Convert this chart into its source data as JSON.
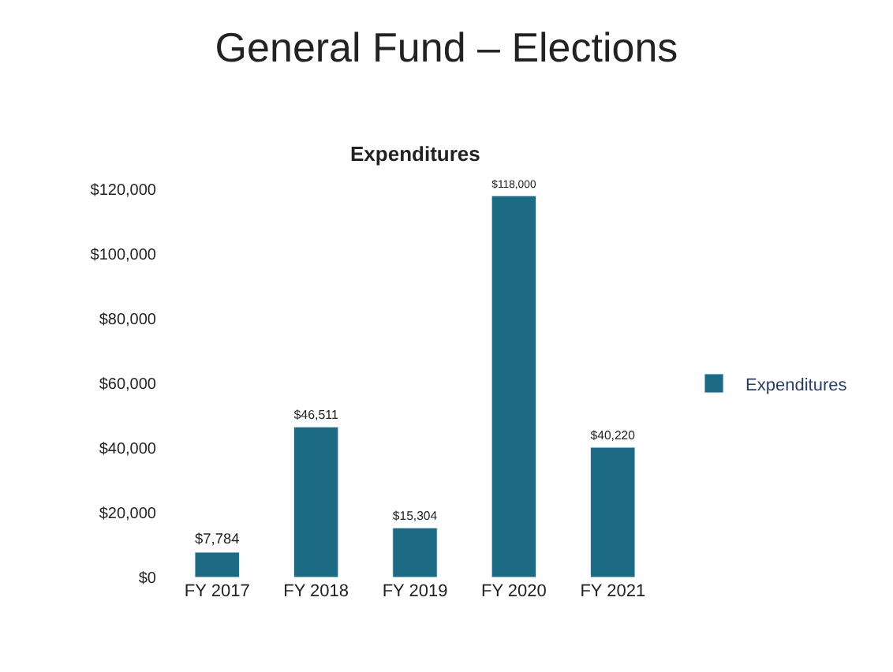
{
  "chart_data": {
    "type": "bar",
    "title": "General Fund – Elections",
    "subtitle": "Expenditures",
    "categories": [
      "FY 2017",
      "FY 2018",
      "FY 2019",
      "FY 2020",
      "FY 2021"
    ],
    "series": [
      {
        "name": "Expenditures",
        "color": "#1d6a85",
        "values": [
          7784,
          46511,
          15304,
          118000,
          40220
        ],
        "value_labels": [
          "$7,784",
          "$46,511",
          "$15,304",
          "$118,000",
          "$40,220"
        ]
      }
    ],
    "ylim": [
      0,
      120000
    ],
    "yticks": [
      {
        "value": 0,
        "label": "$0"
      },
      {
        "value": 20000,
        "label": "$20,000"
      },
      {
        "value": 40000,
        "label": "$40,000"
      },
      {
        "value": 60000,
        "label": "$60,000"
      },
      {
        "value": 80000,
        "label": "$80,000"
      },
      {
        "value": 100000,
        "label": "$100,000"
      },
      {
        "value": 120000,
        "label": "$120,000"
      }
    ],
    "legend": "right"
  }
}
